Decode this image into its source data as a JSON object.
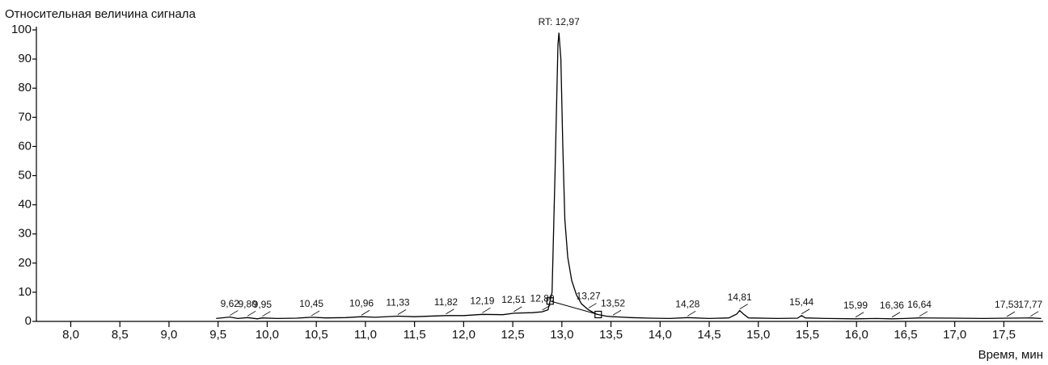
{
  "chart_data": {
    "type": "line",
    "ylabel": "Относительная величина сигнала",
    "xlabel": "Время, мин",
    "annotation": "RT: 12,97",
    "annotation_x": 12.97,
    "color": "#000000",
    "x": [
      9.48,
      9.62,
      9.7,
      9.8,
      9.9,
      9.95,
      10.1,
      10.3,
      10.45,
      10.6,
      10.8,
      10.96,
      11.1,
      11.33,
      11.5,
      11.82,
      12.0,
      12.19,
      12.4,
      12.51,
      12.7,
      12.8,
      12.86,
      12.9,
      12.93,
      12.96,
      12.97,
      12.99,
      13.01,
      13.03,
      13.06,
      13.1,
      13.15,
      13.2,
      13.27,
      13.35,
      13.45,
      13.52,
      13.7,
      13.9,
      14.1,
      14.28,
      14.5,
      14.7,
      14.78,
      14.81,
      14.85,
      14.9,
      15.2,
      15.4,
      15.44,
      15.48,
      15.7,
      15.99,
      16.2,
      16.36,
      16.5,
      16.64,
      17.0,
      17.3,
      17.53,
      17.77,
      17.88
    ],
    "values": [
      1.0,
      1.5,
      1.0,
      1.3,
      0.9,
      1.2,
      1.0,
      1.1,
      1.4,
      1.2,
      1.3,
      1.6,
      1.4,
      1.8,
      1.6,
      2.0,
      2.0,
      2.4,
      2.3,
      2.8,
      3.0,
      3.3,
      4,
      10,
      50,
      95,
      99,
      90,
      60,
      35,
      22,
      14,
      9,
      6,
      4,
      2.5,
      1.8,
      1.6,
      1.3,
      1.1,
      1.0,
      1.3,
      1.0,
      1.2,
      2.5,
      3.7,
      2.5,
      1.2,
      1.0,
      1.1,
      2.0,
      1.2,
      1.0,
      0.9,
      1.0,
      0.9,
      1.0,
      1.2,
      1.1,
      1.0,
      1.1,
      1.2,
      1.0
    ],
    "peak_labels": [
      {
        "value": 9.62,
        "label": "9,62"
      },
      {
        "value": 9.8,
        "label": "9,80"
      },
      {
        "value": 9.95,
        "label": "9,95"
      },
      {
        "value": 10.45,
        "label": "10,45"
      },
      {
        "value": 10.96,
        "label": "10,96"
      },
      {
        "value": 11.33,
        "label": "11,33"
      },
      {
        "value": 11.82,
        "label": "11,82"
      },
      {
        "value": 12.19,
        "label": "12,19"
      },
      {
        "value": 12.51,
        "label": "12,51"
      },
      {
        "value": 12.8,
        "label": "12,80"
      },
      {
        "value": 13.27,
        "label": "13,27"
      },
      {
        "value": 13.52,
        "label": "13,52"
      },
      {
        "value": 14.28,
        "label": "14,28"
      },
      {
        "value": 14.81,
        "label": "14,81"
      },
      {
        "value": 15.44,
        "label": "15,44"
      },
      {
        "value": 15.99,
        "label": "15,99"
      },
      {
        "value": 16.36,
        "label": "16,36"
      },
      {
        "value": 16.64,
        "label": "16,64"
      },
      {
        "value": 17.53,
        "label": "17,53"
      },
      {
        "value": 17.77,
        "label": "17,77"
      }
    ],
    "integration_bounds": [
      12.88,
      13.37
    ],
    "xlim": [
      7.65,
      17.9
    ],
    "ylim": [
      0,
      100
    ],
    "xticks": [
      {
        "value": 8,
        "label": "8,0"
      },
      {
        "value": 8.5,
        "label": "8,5"
      },
      {
        "value": 9,
        "label": "9,0"
      },
      {
        "value": 9.5,
        "label": "9,5"
      },
      {
        "value": 10,
        "label": "10,0"
      },
      {
        "value": 10.5,
        "label": "10,5"
      },
      {
        "value": 11,
        "label": "11,0"
      },
      {
        "value": 11.5,
        "label": "11,5"
      },
      {
        "value": 12,
        "label": "12,0"
      },
      {
        "value": 12.5,
        "label": "12,5"
      },
      {
        "value": 13,
        "label": "13,0"
      },
      {
        "value": 13.5,
        "label": "13,5"
      },
      {
        "value": 14,
        "label": "14,0"
      },
      {
        "value": 14.5,
        "label": "14,5"
      },
      {
        "value": 15,
        "label": "15,0"
      },
      {
        "value": 15.5,
        "label": "15,5"
      },
      {
        "value": 16,
        "label": "16,0"
      },
      {
        "value": 16.5,
        "label": "16,5"
      },
      {
        "value": 17,
        "label": "17,0"
      },
      {
        "value": 17.5,
        "label": "17,5"
      }
    ],
    "yticks": [
      0,
      10,
      20,
      30,
      40,
      50,
      60,
      70,
      80,
      90,
      100
    ]
  }
}
